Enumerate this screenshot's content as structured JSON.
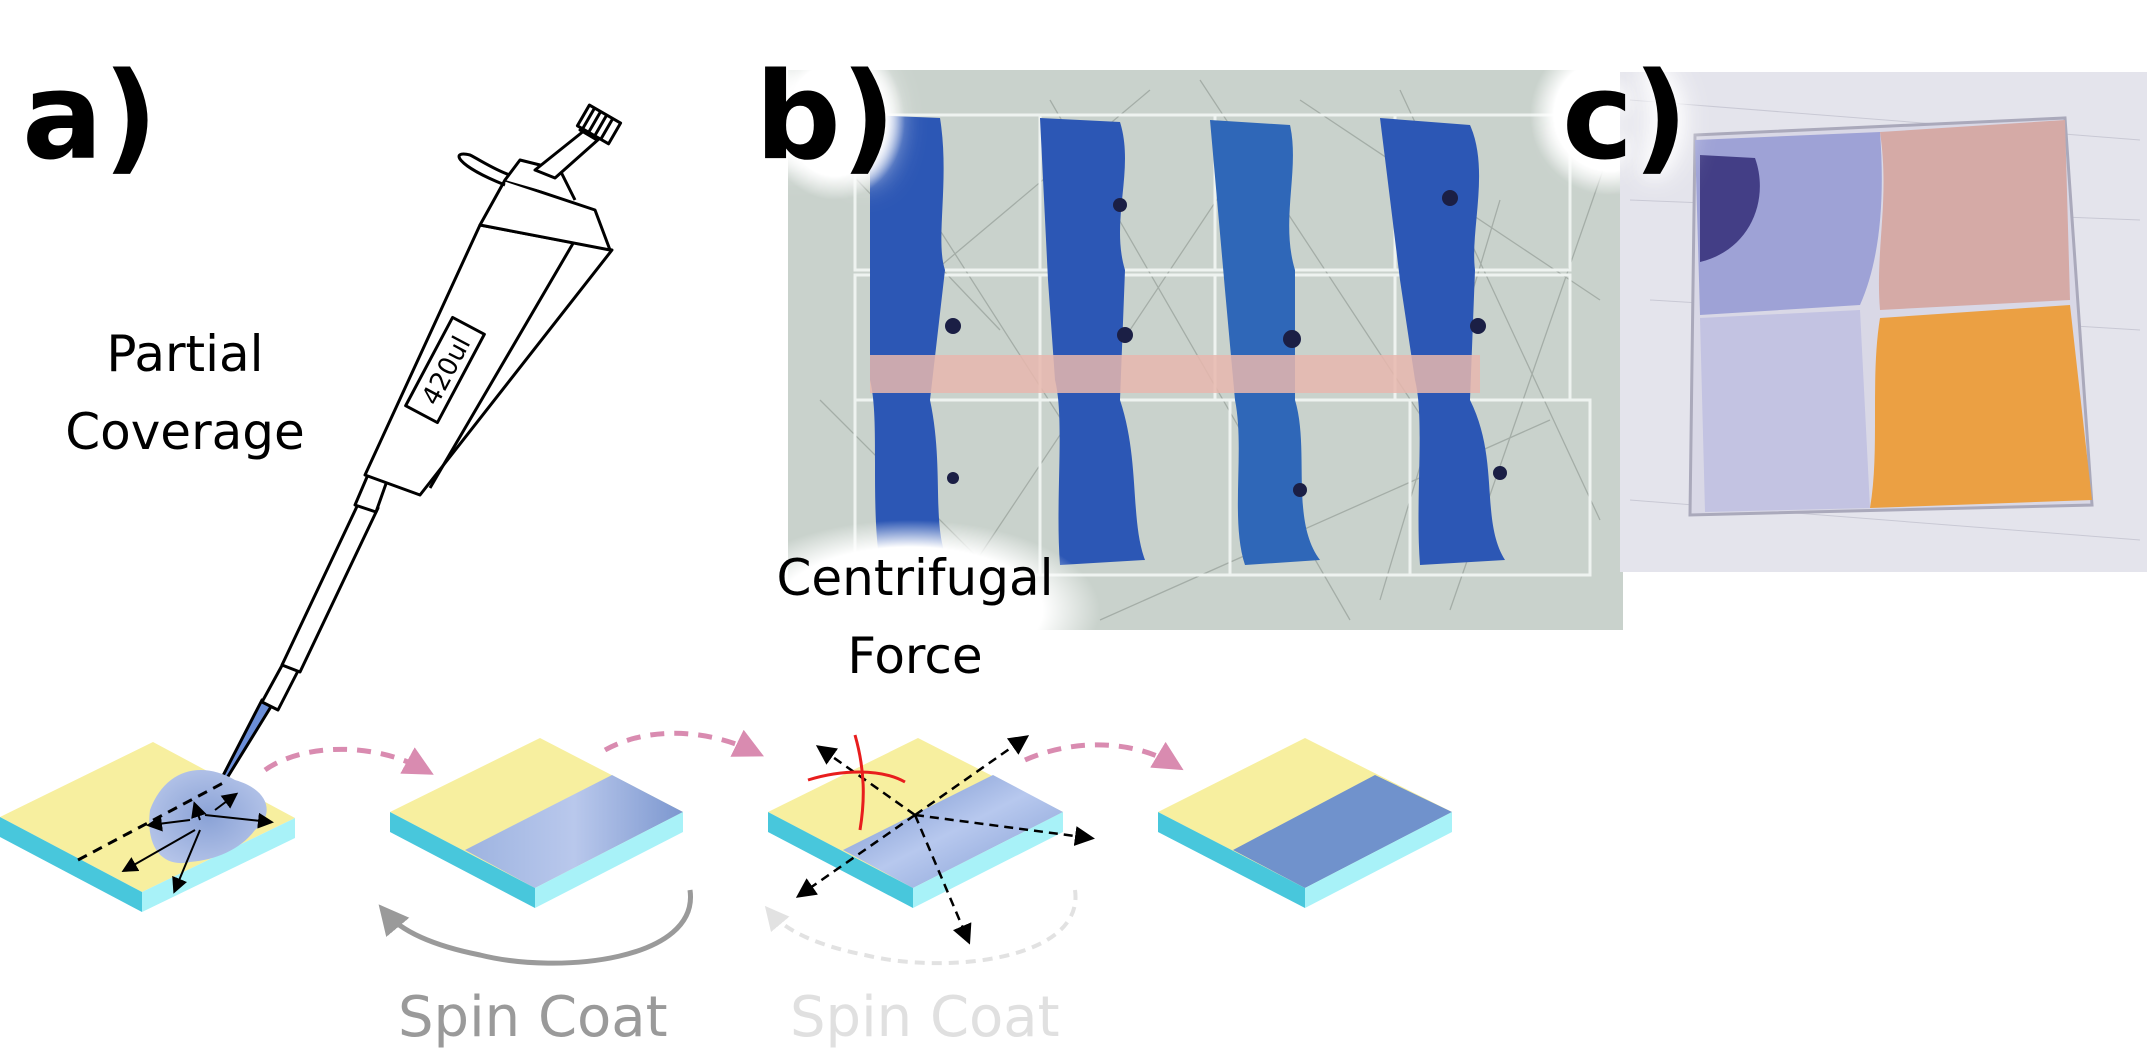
{
  "panels": {
    "a": {
      "label": "a)",
      "caption_line1": "Partial",
      "caption_line2": "Coverage",
      "pipette_volume": "420ul"
    },
    "b": {
      "label": "b)",
      "caption_line1": "Centrifugal",
      "caption_line2": "Force"
    },
    "c": {
      "label": "c)"
    }
  },
  "process": {
    "spin_label_1": "Spin Coat",
    "spin_label_2": "Spin Coat"
  },
  "colors": {
    "substrate_top": "#f7ef9f",
    "substrate_side": "#8eecf5",
    "film_blue": "#6f8fc8",
    "arrow_pink": "#d98bb0",
    "cross_red": "#e81d1d"
  }
}
